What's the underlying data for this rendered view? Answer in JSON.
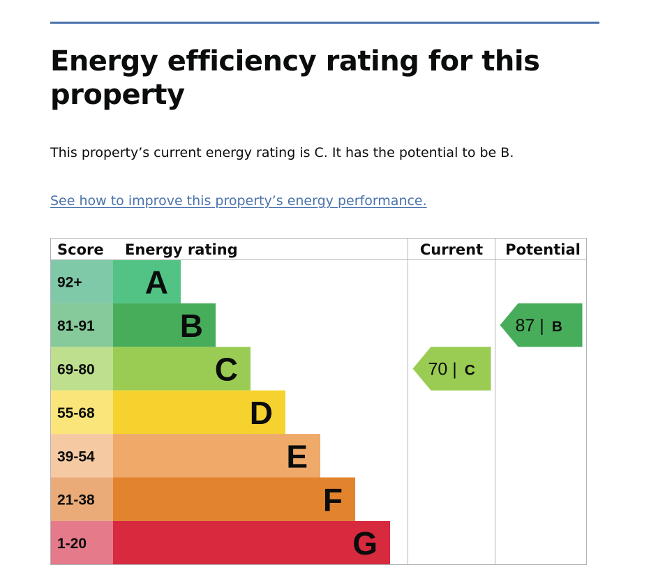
{
  "page": {
    "title": "Energy efficiency rating for this property",
    "summary": "This property’s current energy rating is C. It has the potential to be B.",
    "improve_link": "See how to improve this property’s energy performance."
  },
  "chart_data": {
    "type": "bar",
    "headers": {
      "score": "Score",
      "rating": "Energy rating",
      "current": "Current",
      "potential": "Potential"
    },
    "bands": [
      {
        "letter": "A",
        "score": "92+",
        "color": "#52c384",
        "score_bg": "#7fc8a8"
      },
      {
        "letter": "B",
        "score": "81-91",
        "color": "#47ad5a",
        "score_bg": "#86c99a"
      },
      {
        "letter": "C",
        "score": "69-80",
        "color": "#9acc53",
        "score_bg": "#bddf8e"
      },
      {
        "letter": "D",
        "score": "55-68",
        "color": "#f5d22e",
        "score_bg": "#f9e57a"
      },
      {
        "letter": "E",
        "score": "39-54",
        "color": "#efa969",
        "score_bg": "#f5c9a2"
      },
      {
        "letter": "F",
        "score": "21-38",
        "color": "#e2832e",
        "score_bg": "#eaab78"
      },
      {
        "letter": "G",
        "score": "1-20",
        "color": "#d72a3f",
        "score_bg": "#e57a8a"
      }
    ],
    "current": {
      "value": 70,
      "band": "C",
      "color": "#9acc53"
    },
    "potential": {
      "value": 87,
      "band": "B",
      "color": "#47ad5a"
    }
  }
}
